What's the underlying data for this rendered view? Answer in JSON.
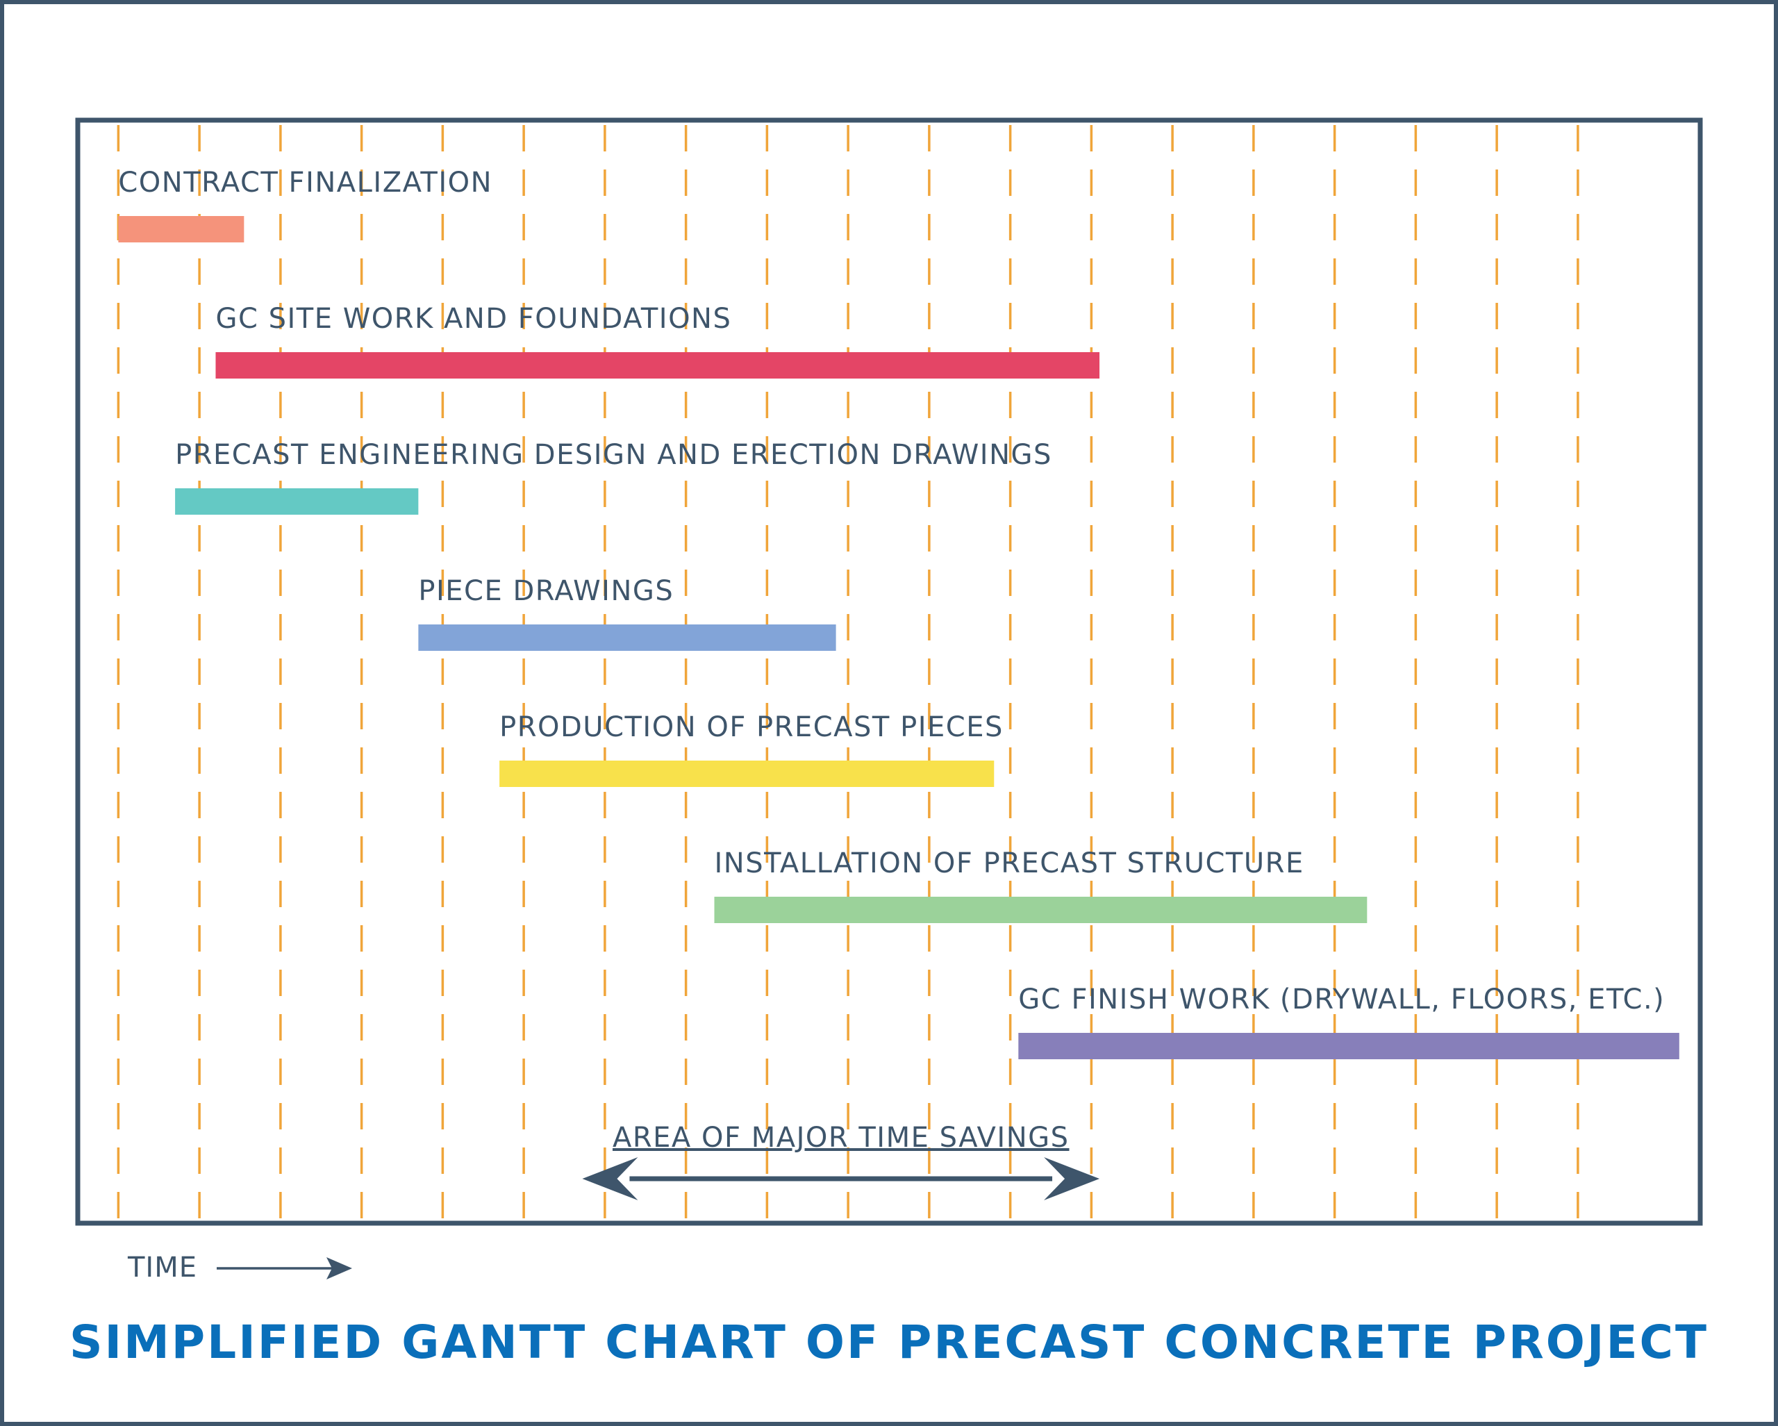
{
  "chart_data": {
    "type": "gantt",
    "title": "SIMPLIFIED GANTT CHART OF PRECAST CONCRETE PROJECT",
    "xlabel": "TIME",
    "grid": "vertical dashed",
    "colors": {
      "frame": "#3e556b",
      "grid": "#f0a53a",
      "title": "#0a6fba",
      "text": "#3e556b"
    },
    "xlim": [
      0,
      20
    ],
    "tasks": [
      {
        "label": "CONTRACT FINALIZATION",
        "start": 0.5,
        "end": 2.05,
        "color": "#f5937b"
      },
      {
        "label": "GC SITE WORK AND FOUNDATIONS",
        "start": 1.7,
        "end": 12.6,
        "color": "#e44566"
      },
      {
        "label": "PRECAST ENGINEERING DESIGN AND ERECTION DRAWINGS",
        "start": 1.2,
        "end": 4.2,
        "color": "#64c9c4"
      },
      {
        "label": "PIECE DRAWINGS",
        "start": 4.2,
        "end": 9.35,
        "color": "#82a4d8"
      },
      {
        "label": "PRODUCTION OF PRECAST PIECES",
        "start": 5.2,
        "end": 11.3,
        "color": "#f8e14b"
      },
      {
        "label": "INSTALLATION OF PRECAST STRUCTURE",
        "start": 7.85,
        "end": 15.9,
        "color": "#9bd29a"
      },
      {
        "label": "GC FINISH WORK (DRYWALL, FLOORS, ETC.)",
        "start": 11.6,
        "end": 19.75,
        "color": "#877fba"
      }
    ],
    "annotation": {
      "label": "AREA OF MAJOR TIME SAVINGS",
      "start": 5.4,
      "end": 12.6
    }
  }
}
